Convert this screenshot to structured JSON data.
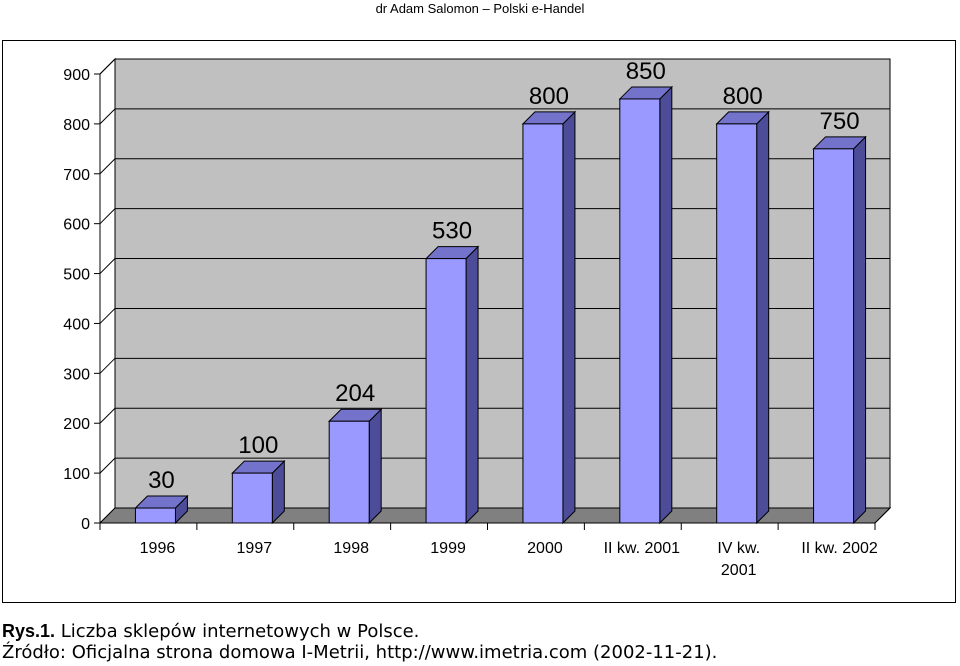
{
  "header": {
    "text": "dr Adam Salomon – Polski e-Handel"
  },
  "chart_data": {
    "type": "bar",
    "style": "3d-column",
    "categories": [
      "1996",
      "1997",
      "1998",
      "1999",
      "2000",
      "II kw. 2001",
      "IV kw. 2001",
      "II kw. 2002"
    ],
    "values": [
      30,
      100,
      204,
      530,
      800,
      850,
      800,
      750
    ],
    "data_labels": [
      "30",
      "100",
      "204",
      "530",
      "800",
      "850",
      "800",
      "750"
    ],
    "ylim": [
      0,
      900
    ],
    "yticks": [
      "0",
      "100",
      "200",
      "300",
      "400",
      "500",
      "600",
      "700",
      "800",
      "900"
    ],
    "grid": true,
    "legend": "none",
    "colors": {
      "bar_front": "#9999ff",
      "bar_side": "#4c4c99",
      "bar_top": "#7373cc",
      "wall": "#c0c0c0",
      "floor": "#808080"
    }
  },
  "caption": {
    "lead": "Rys.1.",
    "text": " Liczba sklepów internetowych w Polsce."
  },
  "source": {
    "text": "Źródło: Oficjalna strona domowa I-Metrii, http://www.imetria.com (2002-11-21)."
  }
}
